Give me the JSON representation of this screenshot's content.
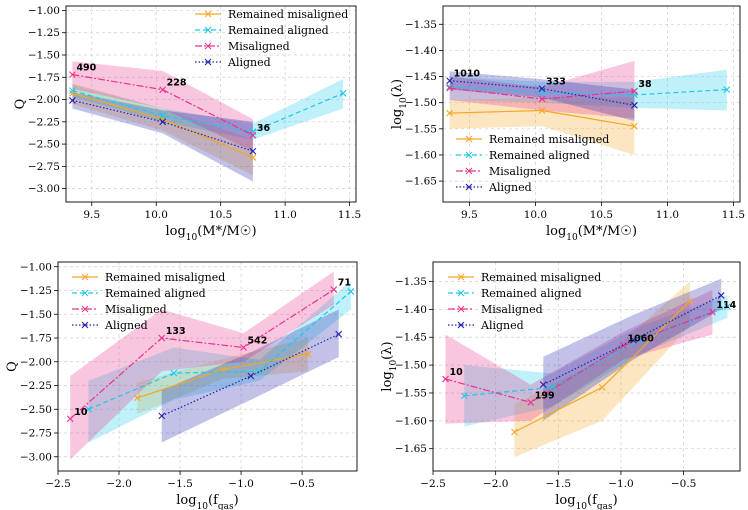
{
  "series_styles": {
    "Remained misaligned": {
      "color": "#f5a623",
      "dash": ""
    },
    "Remained aligned": {
      "color": "#1ec8e8",
      "dash": "5 3"
    },
    "Misaligned": {
      "color": "#e8348c",
      "dash": "7 2 2 2"
    },
    "Aligned": {
      "color": "#2323b0",
      "dash": "1.5 2"
    }
  },
  "chart_data": [
    {
      "type": "line",
      "id": "tl",
      "xlabel": "log10(M*/M☉)",
      "ylabel": "Q",
      "xlim": [
        9.3,
        11.55
      ],
      "ylim": [
        -3.15,
        -0.95
      ],
      "xticks": [
        9.5,
        10.0,
        10.5,
        11.0,
        11.5
      ],
      "xtick_labels": [
        "9.5",
        "10.0",
        "10.5",
        "11.0",
        "11.5"
      ],
      "yticks": [
        -1.0,
        -1.25,
        -1.5,
        -1.75,
        -2.0,
        -2.25,
        -2.5,
        -2.75,
        -3.0
      ],
      "ytick_labels": [
        "−1.00",
        "−1.25",
        "−1.50",
        "−1.75",
        "−2.00",
        "−2.25",
        "−2.50",
        "−2.75",
        "−3.00"
      ],
      "legend_position": "top-right",
      "series": [
        {
          "name": "Remained misaligned",
          "x": [
            9.35,
            10.05,
            10.75
          ],
          "y": [
            -1.93,
            -2.22,
            -2.65
          ],
          "lo": [
            -2.05,
            -2.35,
            -2.85
          ],
          "hi": [
            -1.82,
            -2.1,
            -2.45
          ]
        },
        {
          "name": "Remained aligned",
          "x": [
            9.35,
            10.05,
            10.75,
            11.45
          ],
          "y": [
            -1.9,
            -2.18,
            -2.36,
            -1.93
          ],
          "lo": [
            -1.97,
            -2.25,
            -2.45,
            -2.1
          ],
          "hi": [
            -1.83,
            -2.1,
            -2.27,
            -1.77
          ]
        },
        {
          "name": "Misaligned",
          "x": [
            9.35,
            10.05,
            10.75
          ],
          "y": [
            -1.72,
            -1.89,
            -2.4
          ],
          "lo": [
            -1.88,
            -2.1,
            -2.58
          ],
          "hi": [
            -1.57,
            -1.68,
            -2.22
          ]
        },
        {
          "name": "Aligned",
          "x": [
            9.35,
            10.05,
            10.75
          ],
          "y": [
            -2.01,
            -2.25,
            -2.58
          ],
          "lo": [
            -2.1,
            -2.38,
            -2.92
          ],
          "hi": [
            -1.92,
            -2.12,
            -2.25
          ]
        }
      ],
      "annotations": [
        {
          "text": "490",
          "x": 9.35,
          "y": -1.72
        },
        {
          "text": "228",
          "x": 10.05,
          "y": -1.89
        },
        {
          "text": "36",
          "x": 10.75,
          "y": -2.4
        }
      ]
    },
    {
      "type": "line",
      "id": "tr",
      "xlabel": "log10(M*/M☉)",
      "ylabel": "log10(λ)",
      "xlim": [
        9.3,
        11.55
      ],
      "ylim": [
        -1.69,
        -1.315
      ],
      "xticks": [
        9.5,
        10.0,
        10.5,
        11.0,
        11.5
      ],
      "xtick_labels": [
        "9.5",
        "10.0",
        "10.5",
        "11.0",
        "11.5"
      ],
      "yticks": [
        -1.35,
        -1.4,
        -1.45,
        -1.5,
        -1.55,
        -1.6,
        -1.65
      ],
      "ytick_labels": [
        "−1.35",
        "−1.40",
        "−1.45",
        "−1.50",
        "−1.55",
        "−1.60",
        "−1.65"
      ],
      "legend_position": "bottom-right",
      "series": [
        {
          "name": "Remained misaligned",
          "x": [
            9.35,
            10.05,
            10.75
          ],
          "y": [
            -1.52,
            -1.515,
            -1.545
          ],
          "lo": [
            -1.55,
            -1.545,
            -1.6
          ],
          "hi": [
            -1.495,
            -1.49,
            -1.49
          ]
        },
        {
          "name": "Remained aligned",
          "x": [
            9.35,
            10.05,
            10.75,
            11.45
          ],
          "y": [
            -1.47,
            -1.48,
            -1.485,
            -1.475
          ],
          "lo": [
            -1.495,
            -1.5,
            -1.51,
            -1.515
          ],
          "hi": [
            -1.45,
            -1.46,
            -1.46,
            -1.437
          ]
        },
        {
          "name": "Misaligned",
          "x": [
            9.35,
            10.05,
            10.75
          ],
          "y": [
            -1.472,
            -1.493,
            -1.478
          ],
          "lo": [
            -1.495,
            -1.515,
            -1.53
          ],
          "hi": [
            -1.45,
            -1.47,
            -1.42
          ]
        },
        {
          "name": "Aligned",
          "x": [
            9.35,
            10.05,
            10.75
          ],
          "y": [
            -1.458,
            -1.473,
            -1.505
          ],
          "lo": [
            -1.475,
            -1.49,
            -1.535
          ],
          "hi": [
            -1.44,
            -1.455,
            -1.475
          ]
        }
      ],
      "annotations": [
        {
          "text": "1010",
          "x": 9.35,
          "y": -1.458
        },
        {
          "text": "333",
          "x": 10.05,
          "y": -1.473
        },
        {
          "text": "38",
          "x": 10.75,
          "y": -1.478
        }
      ]
    },
    {
      "type": "line",
      "id": "bl",
      "xlabel": "log10(fgas)",
      "ylabel": "Q",
      "xlim": [
        -2.5,
        -0.05
      ],
      "ylim": [
        -3.15,
        -0.95
      ],
      "xticks": [
        -2.5,
        -2.0,
        -1.5,
        -1.0,
        -0.5
      ],
      "xtick_labels": [
        "−2.5",
        "−2.0",
        "−1.5",
        "−1.0",
        "−0.5"
      ],
      "yticks": [
        -1.0,
        -1.25,
        -1.5,
        -1.75,
        -2.0,
        -2.25,
        -2.5,
        -2.75,
        -3.0
      ],
      "ytick_labels": [
        "−1.00",
        "−1.25",
        "−1.50",
        "−1.75",
        "−2.00",
        "−2.25",
        "−2.50",
        "−2.75",
        "−3.00"
      ],
      "legend_position": "top-left",
      "series": [
        {
          "name": "Remained misaligned",
          "x": [
            -1.85,
            -1.15,
            -0.45
          ],
          "y": [
            -2.38,
            -2.08,
            -1.92
          ],
          "lo": [
            -2.55,
            -2.18,
            -2.1
          ],
          "hi": [
            -2.22,
            -1.97,
            -1.75
          ]
        },
        {
          "name": "Remained aligned",
          "x": [
            -2.25,
            -1.55,
            -0.85,
            -0.1
          ],
          "y": [
            -2.5,
            -2.12,
            -2.1,
            -1.26
          ],
          "lo": [
            -2.85,
            -2.4,
            -2.2,
            -1.45
          ],
          "hi": [
            -2.2,
            -1.85,
            -1.98,
            -1.15
          ]
        },
        {
          "name": "Misaligned",
          "x": [
            -2.4,
            -1.65,
            -0.98,
            -0.24
          ],
          "y": [
            -2.6,
            -1.75,
            -1.85,
            -1.24
          ],
          "lo": [
            -3.03,
            -2.1,
            -2.0,
            -1.4
          ],
          "hi": [
            -2.15,
            -1.45,
            -1.7,
            -1.05
          ]
        },
        {
          "name": "Aligned",
          "x": [
            -1.65,
            -0.92,
            -0.2
          ],
          "y": [
            -2.57,
            -2.15,
            -1.71
          ],
          "lo": [
            -2.85,
            -2.4,
            -1.95
          ],
          "hi": [
            -2.3,
            -1.9,
            -1.45
          ]
        }
      ],
      "annotations": [
        {
          "text": "10",
          "x": -2.4,
          "y": -2.6
        },
        {
          "text": "133",
          "x": -1.65,
          "y": -1.75
        },
        {
          "text": "542",
          "x": -0.98,
          "y": -1.85
        },
        {
          "text": "71",
          "x": -0.24,
          "y": -1.24
        }
      ]
    },
    {
      "type": "line",
      "id": "br",
      "xlabel": "log10(fgas)",
      "ylabel": "log10(λ)",
      "xlim": [
        -2.5,
        -0.05
      ],
      "ylim": [
        -1.69,
        -1.315
      ],
      "xticks": [
        -2.5,
        -2.0,
        -1.5,
        -1.0,
        -0.5
      ],
      "xtick_labels": [
        "−2.5",
        "−2.0",
        "−1.5",
        "−1.0",
        "−0.5"
      ],
      "yticks": [
        -1.35,
        -1.4,
        -1.45,
        -1.5,
        -1.55,
        -1.6,
        -1.65
      ],
      "ytick_labels": [
        "−1.35",
        "−1.40",
        "−1.45",
        "−1.50",
        "−1.55",
        "−1.60",
        "−1.65"
      ],
      "legend_position": "top-left",
      "series": [
        {
          "name": "Remained misaligned",
          "x": [
            -1.85,
            -1.15,
            -0.45
          ],
          "y": [
            -1.62,
            -1.54,
            -1.385
          ],
          "lo": [
            -1.665,
            -1.6,
            -1.43
          ],
          "hi": [
            -1.57,
            -1.49,
            -1.35
          ]
        },
        {
          "name": "Remained aligned",
          "x": [
            -2.25,
            -1.55,
            -0.85,
            -0.15
          ],
          "y": [
            -1.555,
            -1.54,
            -1.455,
            -1.395
          ],
          "lo": [
            -1.61,
            -1.575,
            -1.48,
            -1.415
          ],
          "hi": [
            -1.5,
            -1.515,
            -1.43,
            -1.375
          ]
        },
        {
          "name": "Misaligned",
          "x": [
            -2.4,
            -1.72,
            -0.98,
            -0.27
          ],
          "y": [
            -1.525,
            -1.567,
            -1.465,
            -1.405
          ],
          "lo": [
            -1.605,
            -1.6,
            -1.49,
            -1.445
          ],
          "hi": [
            -1.445,
            -1.535,
            -1.44,
            -1.365
          ]
        },
        {
          "name": "Aligned",
          "x": [
            -1.62,
            -0.9,
            -0.2
          ],
          "y": [
            -1.535,
            -1.455,
            -1.375
          ],
          "lo": [
            -1.6,
            -1.49,
            -1.4
          ],
          "hi": [
            -1.485,
            -1.41,
            -1.345
          ]
        }
      ],
      "annotations": [
        {
          "text": "10",
          "x": -2.4,
          "y": -1.525
        },
        {
          "text": "199",
          "x": -1.72,
          "y": -1.567
        },
        {
          "text": "1060",
          "x": -0.98,
          "y": -1.465
        },
        {
          "text": "114",
          "x": -0.27,
          "y": -1.405
        }
      ]
    }
  ]
}
